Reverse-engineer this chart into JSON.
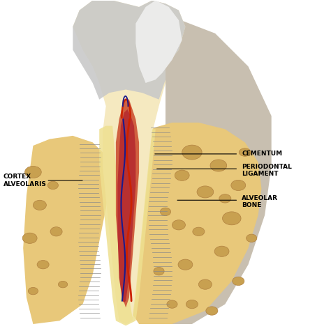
{
  "background_color": "#ffffff",
  "labels": {
    "cortex_alveolaris": "CORTEX\nALVEOLARIS",
    "cementum": "CEMENTUM",
    "periodontal_ligament": "PERIODONTAL\nLIGAMENT",
    "alveolar_bone": "ALVEOLAR\nBONE"
  },
  "colors": {
    "enamel": "#d8d8d8",
    "enamel_highlight": "#f0f0f0",
    "dentin": "#f5e9c0",
    "pulp_outer": "#e8a080",
    "pulp_inner": "#c84040",
    "cortex": "#b0b0b0",
    "pdl": "#f5e8a0",
    "alveolar_bone_fill": "#e8c87a",
    "bone_marrow": "#c8a050",
    "shadow": "#9B8B70",
    "text_color": "#000000",
    "vessel_red": "#cc2200",
    "vessel_blue": "#1a1a8c"
  },
  "figsize": [
    4.74,
    4.75
  ],
  "dpi": 100
}
